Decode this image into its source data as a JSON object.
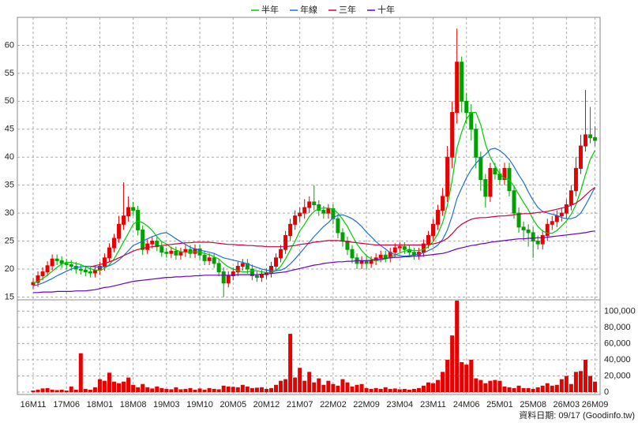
{
  "chart_data": {
    "type": "candlestick",
    "legend_position": "top",
    "grid": true,
    "up_color": "#e60000",
    "down_color": "#00a000",
    "ylim": [
      14.5,
      65
    ],
    "yticks": [
      15,
      20,
      25,
      30,
      35,
      40,
      45,
      50,
      55,
      60
    ],
    "categories": [
      "16M11",
      null,
      null,
      null,
      null,
      null,
      null,
      "17M06",
      null,
      null,
      null,
      null,
      null,
      null,
      "18M01",
      null,
      null,
      null,
      null,
      null,
      null,
      "18M08",
      null,
      null,
      null,
      null,
      null,
      null,
      "19M03",
      null,
      null,
      null,
      null,
      null,
      null,
      "19M10",
      null,
      null,
      null,
      null,
      null,
      null,
      "20M05",
      null,
      null,
      null,
      null,
      null,
      null,
      "20M12",
      null,
      null,
      null,
      null,
      null,
      null,
      "21M07",
      null,
      null,
      null,
      null,
      null,
      null,
      "22M02",
      null,
      null,
      null,
      null,
      null,
      null,
      "22M09",
      null,
      null,
      null,
      null,
      null,
      null,
      "23M04",
      null,
      null,
      null,
      null,
      null,
      null,
      "23M11",
      null,
      null,
      null,
      null,
      null,
      null,
      "24M06",
      null,
      null,
      null,
      null,
      null,
      null,
      "25M01",
      null,
      null,
      null,
      null,
      null,
      null,
      "25M08",
      null,
      null,
      null,
      null,
      null,
      null,
      "26M03",
      null,
      null,
      null,
      null,
      null,
      "26M09"
    ],
    "open": [
      17.2,
      17.6,
      18.8,
      19.5,
      20.6,
      21.8,
      21.5,
      21.0,
      20.8,
      20.5,
      20.0,
      19.8,
      19.5,
      19.3,
      19.8,
      20.5,
      22.0,
      23.8,
      25.5,
      28.0,
      29.5,
      31.0,
      30.5,
      27.0,
      23.5,
      24.5,
      25.0,
      24.0,
      23.0,
      22.8,
      23.2,
      22.5,
      23.0,
      23.5,
      22.8,
      23.6,
      22.5,
      21.5,
      22.0,
      21.0,
      19.5,
      17.5,
      18.8,
      19.5,
      20.5,
      21.0,
      20.0,
      18.8,
      18.5,
      19.0,
      19.3,
      20.5,
      22.0,
      23.5,
      26.0,
      28.0,
      29.5,
      30.0,
      31.0,
      32.0,
      31.5,
      30.5,
      30.0,
      30.8,
      29.0,
      26.5,
      25.0,
      23.5,
      22.0,
      21.0,
      21.5,
      21.0,
      21.5,
      22.0,
      22.5,
      22.0,
      23.0,
      23.8,
      24.0,
      23.5,
      23.0,
      22.5,
      23.0,
      24.5,
      26.0,
      28.0,
      30.5,
      33.0,
      40.0,
      48.0,
      57.0,
      50.0,
      48.0,
      45.0,
      40.0,
      36.0,
      33.0,
      38.0,
      37.0,
      36.0,
      38.0,
      34.0,
      30.0,
      27.5,
      27.0,
      26.5,
      25.0,
      24.5,
      26.0,
      28.0,
      28.5,
      29.5,
      30.0,
      31.5,
      34.0,
      38.0,
      42.0,
      44.0,
      43.5
    ],
    "high": [
      18.4,
      19.6,
      20.3,
      21.4,
      22.6,
      22.6,
      22.3,
      21.8,
      21.6,
      21.3,
      20.8,
      20.6,
      20.3,
      20.6,
      21.3,
      22.8,
      24.6,
      26.3,
      29.5,
      35.5,
      33,
      32,
      31.3,
      27.8,
      25.3,
      25.8,
      25.8,
      24.8,
      23.8,
      24,
      24,
      23.8,
      24.3,
      24.3,
      24.4,
      24.4,
      23.3,
      22.8,
      22.8,
      21.8,
      20.3,
      19.6,
      20.3,
      21.3,
      21.8,
      21.8,
      20.8,
      19.6,
      19.8,
      20.1,
      21.3,
      22.8,
      24.3,
      26.8,
      29,
      30.5,
      31,
      32.5,
      33,
      35,
      32.3,
      31.3,
      31.6,
      31.6,
      29.8,
      27.3,
      25.8,
      24.3,
      22.8,
      22.3,
      22.3,
      22.3,
      22.8,
      23.3,
      23.3,
      23.8,
      24.6,
      24.8,
      24.8,
      24.3,
      23.8,
      23.8,
      25.3,
      26.8,
      29,
      31.5,
      34.5,
      42,
      50,
      63,
      58,
      51.5,
      49.5,
      46,
      41,
      37,
      39,
      39,
      38,
      39,
      39,
      35,
      31,
      28.5,
      28,
      27.5,
      26,
      27,
      29,
      29.5,
      30.5,
      31,
      32.5,
      35,
      40,
      44,
      52,
      49,
      45.5
    ],
    "low": [
      16.4,
      16.8,
      18.0,
      18.7,
      19.8,
      20.7,
      20.2,
      20,
      19.7,
      19.2,
      19,
      18.7,
      18.5,
      18.5,
      19,
      19.7,
      21.2,
      23,
      24.7,
      27,
      28.5,
      29.5,
      26,
      22.5,
      22.7,
      23.7,
      23.2,
      22.2,
      22,
      22,
      21.7,
      21.7,
      22.2,
      22,
      22,
      21.7,
      20.7,
      20.7,
      20.2,
      18.7,
      15,
      16.7,
      18,
      18.7,
      19.7,
      19.2,
      18,
      17.7,
      17.7,
      18.2,
      18.5,
      19.7,
      21.2,
      22.7,
      25,
      27,
      28.5,
      29,
      30,
      30.5,
      29.5,
      29,
      29,
      28,
      25.5,
      24,
      22.5,
      21,
      20,
      20,
      20,
      20.2,
      20.7,
      21.2,
      21.2,
      21.2,
      22.2,
      23,
      22.7,
      22.2,
      21.7,
      21.7,
      22.2,
      23.7,
      25,
      27,
      29.5,
      32,
      38,
      46,
      48,
      46,
      43,
      38,
      34,
      31,
      32,
      36,
      35,
      35,
      33,
      29,
      26.5,
      25,
      24,
      22,
      23.5,
      23.5,
      25,
      27,
      27.5,
      28.5,
      29,
      30.5,
      33,
      37,
      41,
      42.5,
      42
    ],
    "close": [
      17.6,
      18.8,
      19.5,
      20.6,
      21.8,
      21.5,
      21.0,
      20.8,
      20.5,
      20.0,
      19.8,
      19.5,
      19.3,
      19.8,
      20.5,
      22.0,
      23.8,
      25.5,
      28.0,
      29.5,
      31.0,
      30.5,
      27.0,
      23.5,
      24.5,
      25.0,
      24.0,
      23.0,
      22.8,
      23.2,
      22.5,
      23.0,
      23.5,
      22.8,
      23.6,
      22.5,
      21.5,
      22.0,
      21.0,
      19.5,
      17.5,
      18.8,
      19.5,
      20.5,
      21.0,
      20.0,
      18.8,
      18.5,
      19.0,
      19.3,
      20.5,
      22.0,
      23.5,
      26.0,
      28.0,
      29.5,
      30.0,
      31.0,
      32.0,
      31.5,
      30.5,
      30.0,
      30.8,
      29.0,
      26.5,
      25.0,
      23.5,
      22.0,
      21.0,
      21.5,
      21.0,
      21.5,
      22.0,
      22.5,
      22.0,
      23.0,
      23.8,
      24.0,
      23.5,
      23.0,
      22.5,
      23.0,
      24.5,
      26.0,
      28.0,
      30.5,
      33.0,
      40.0,
      48.0,
      57.0,
      50.0,
      48.0,
      45.0,
      40.0,
      36.0,
      33.0,
      38.0,
      37.0,
      36.0,
      38.0,
      34.0,
      30.0,
      27.5,
      27.0,
      26.5,
      25.0,
      24.5,
      26.0,
      28.0,
      28.5,
      29.5,
      30.0,
      31.5,
      34.0,
      38.0,
      42.0,
      44.0,
      43.5,
      43.0
    ],
    "series": [
      {
        "name": "半年",
        "color": "#00cc00",
        "values": [
          17.5,
          17.8,
          18.3,
          18.9,
          19.6,
          20.3,
          20.9,
          21.2,
          21.2,
          21.0,
          20.8,
          20.4,
          20.1,
          19.8,
          19.8,
          20.1,
          20.8,
          21.8,
          23.3,
          24.9,
          26.4,
          28.0,
          28.6,
          28.3,
          27.7,
          26.9,
          25.8,
          24.9,
          24.5,
          23.8,
          23.4,
          23.1,
          23.0,
          23.0,
          23.1,
          23.0,
          22.8,
          22.6,
          22.2,
          21.8,
          21.0,
          20.4,
          20.0,
          19.7,
          19.5,
          19.5,
          19.7,
          19.7,
          19.5,
          19.4,
          19.4,
          19.7,
          20.5,
          21.8,
          23.4,
          25.0,
          26.8,
          28.0,
          29.4,
          30.3,
          30.8,
          30.9,
          30.9,
          30.7,
          30.0,
          28.9,
          27.6,
          26.0,
          24.5,
          23.3,
          22.4,
          21.8,
          21.5,
          21.6,
          21.8,
          22.1,
          22.5,
          22.9,
          23.2,
          23.4,
          23.3,
          23.3,
          23.5,
          24.0,
          24.9,
          26.3,
          28.3,
          31.4,
          35.8,
          41.6,
          44.5,
          46.8,
          48.0,
          48.0,
          45.8,
          42.3,
          40.0,
          38.5,
          37.0,
          36.2,
          36.0,
          34.8,
          33.3,
          31.9,
          30.6,
          28.9,
          27.6,
          26.8,
          26.4,
          26.4,
          26.9,
          27.7,
          28.6,
          29.8,
          31.5,
          34.0,
          36.9,
          39.6,
          41.2
        ]
      },
      {
        "name": "年線",
        "color": "#1e6fd9",
        "values": [
          17.0,
          17.2,
          17.5,
          17.9,
          18.3,
          18.8,
          19.2,
          19.6,
          20.0,
          20.3,
          20.4,
          20.5,
          20.5,
          20.4,
          20.3,
          20.4,
          20.6,
          21.0,
          21.6,
          22.4,
          23.3,
          24.2,
          24.6,
          25.0,
          25.4,
          25.8,
          26.1,
          26.4,
          26.5,
          26.0,
          25.4,
          24.9,
          24.4,
          23.9,
          23.6,
          23.4,
          23.2,
          23.0,
          22.8,
          22.4,
          22.0,
          21.8,
          21.6,
          21.4,
          21.2,
          20.9,
          20.6,
          20.3,
          20.0,
          19.8,
          19.7,
          19.7,
          19.8,
          20.2,
          20.9,
          21.8,
          22.8,
          23.8,
          24.8,
          25.8,
          26.7,
          27.6,
          28.3,
          29.2,
          29.6,
          29.7,
          29.4,
          29.0,
          28.4,
          27.6,
          26.6,
          25.8,
          24.9,
          24.2,
          23.6,
          22.9,
          22.6,
          22.4,
          22.3,
          22.4,
          22.5,
          22.7,
          22.9,
          23.3,
          23.7,
          24.3,
          25.3,
          27.0,
          29.5,
          32.6,
          34.5,
          36.3,
          37.8,
          38.9,
          39.8,
          40.5,
          41.4,
          41.6,
          41.2,
          40.5,
          39.6,
          38.3,
          36.8,
          35.5,
          33.8,
          32.3,
          31.0,
          30.3,
          30.0,
          29.8,
          29.6,
          29.2,
          29.0,
          29.0,
          29.3,
          30.0,
          31.4,
          33.0,
          34.6
        ]
      },
      {
        "name": "三年",
        "color": "#cc0044",
        "values": [
          null,
          null,
          null,
          null,
          null,
          null,
          null,
          null,
          null,
          null,
          null,
          null,
          20.4,
          20.6,
          20.8,
          21.0,
          21.3,
          21.6,
          22.0,
          22.4,
          22.8,
          23.2,
          23.5,
          23.7,
          23.9,
          24.0,
          24.1,
          24.2,
          24.3,
          24.4,
          24.5,
          24.6,
          24.7,
          24.7,
          24.8,
          24.8,
          24.8,
          24.8,
          24.7,
          24.6,
          24.5,
          24.4,
          24.4,
          24.3,
          24.3,
          24.2,
          24.2,
          24.1,
          24.1,
          24.0,
          24.0,
          24.0,
          24.0,
          24.0,
          24.1,
          24.2,
          24.4,
          24.5,
          24.6,
          24.8,
          24.9,
          25.0,
          25.1,
          25.1,
          25.1,
          25.0,
          24.9,
          24.8,
          24.7,
          24.6,
          24.5,
          24.4,
          24.3,
          24.3,
          24.3,
          24.3,
          24.3,
          24.3,
          24.3,
          24.3,
          24.3,
          24.3,
          24.3,
          24.4,
          24.5,
          24.7,
          25.0,
          25.5,
          26.3,
          27.3,
          28.0,
          28.5,
          28.9,
          29.1,
          29.2,
          29.2,
          29.3,
          29.4,
          29.5,
          29.5,
          29.6,
          29.7,
          29.8,
          29.9,
          29.9,
          30.0,
          30.1,
          30.2,
          30.3,
          30.5,
          30.7,
          30.9,
          31.1,
          31.4,
          31.8,
          32.4,
          33.2,
          34.0,
          34.6
        ]
      },
      {
        "name": "十年",
        "color": "#6600cc",
        "values": [
          15.8,
          15.8,
          15.9,
          15.9,
          15.9,
          16.0,
          16.0,
          16.0,
          16.0,
          16.1,
          16.1,
          16.1,
          16.2,
          16.3,
          16.5,
          16.7,
          16.8,
          17.0,
          17.2,
          17.4,
          17.6,
          17.8,
          17.9,
          18.0,
          18.1,
          18.2,
          18.3,
          18.4,
          18.5,
          18.5,
          18.6,
          18.6,
          18.7,
          18.7,
          18.8,
          18.8,
          18.9,
          18.9,
          18.9,
          18.9,
          18.9,
          18.9,
          18.9,
          19.0,
          19.0,
          19.0,
          19.0,
          19.0,
          19.1,
          19.1,
          19.2,
          19.3,
          19.4,
          19.5,
          19.7,
          19.9,
          20.1,
          20.3,
          20.5,
          20.7,
          20.8,
          21.0,
          21.1,
          21.2,
          21.3,
          21.3,
          21.4,
          21.4,
          21.5,
          21.5,
          21.5,
          21.6,
          21.7,
          21.8,
          21.9,
          22.0,
          22.1,
          22.1,
          22.2,
          22.2,
          22.3,
          22.3,
          22.4,
          22.5,
          22.6,
          22.7,
          22.8,
          23.0,
          23.3,
          23.6,
          23.8,
          24.0,
          24.2,
          24.3,
          24.5,
          24.6,
          24.8,
          24.9,
          25.0,
          25.1,
          25.2,
          25.3,
          25.4,
          25.4,
          25.5,
          25.5,
          25.6,
          25.6,
          25.7,
          25.8,
          25.9,
          26.0,
          26.1,
          26.2,
          26.3,
          26.4,
          26.5,
          26.7,
          26.8
        ]
      }
    ],
    "volume": {
      "color": "#e60000",
      "ylim": [
        0,
        114000
      ],
      "yticks": [
        0,
        {
          "value": 20000,
          "label": "20,000"
        },
        {
          "value": 40000,
          "label": "40,000"
        },
        {
          "value": 60000,
          "label": "60,000"
        },
        {
          "value": 80000,
          "label": "80,000"
        },
        {
          "value": 100000,
          "label": "100,000"
        }
      ],
      "values": [
        2000,
        3000,
        4500,
        5000,
        3000,
        2500,
        3000,
        2000,
        7000,
        3000,
        48000,
        4000,
        3000,
        6000,
        16000,
        14000,
        24000,
        13000,
        11000,
        13000,
        18000,
        9000,
        6000,
        10000,
        6000,
        4500,
        7000,
        5000,
        4000,
        3500,
        6000,
        3500,
        4000,
        5000,
        3000,
        4500,
        3000,
        5000,
        4000,
        3500,
        8000,
        7000,
        6500,
        6000,
        9000,
        7000,
        5000,
        5500,
        6000,
        4000,
        5000,
        9000,
        14000,
        16000,
        72000,
        18000,
        30000,
        14000,
        25000,
        12000,
        17000,
        9000,
        14000,
        10000,
        8000,
        16000,
        12000,
        7000,
        9000,
        10000,
        5000,
        4000,
        5000,
        4000,
        6000,
        4000,
        4500,
        3500,
        4000,
        3000,
        4000,
        5000,
        8000,
        12000,
        11000,
        15000,
        25000,
        40000,
        70000,
        113000,
        37000,
        34000,
        40000,
        17000,
        15000,
        11000,
        14000,
        15000,
        14000,
        7000,
        6000,
        5000,
        8000,
        5000,
        5000,
        4000,
        6000,
        8000,
        11000,
        8000,
        9000,
        16000,
        20000,
        10000,
        25000,
        26000,
        40000,
        20000,
        13000
      ]
    },
    "source": "資料日期: 09/17 (Goodinfo.tw)"
  }
}
